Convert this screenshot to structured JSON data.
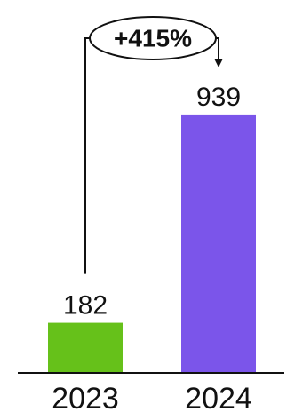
{
  "chart_data": {
    "type": "bar",
    "categories": [
      "2023",
      "2024"
    ],
    "values": [
      182,
      939
    ],
    "data_labels": [
      "182",
      "939"
    ],
    "colors": [
      "#66c11a",
      "#7b55ea"
    ],
    "annotation": {
      "label": "+415%",
      "from": "2023",
      "to": "2024"
    },
    "title": "",
    "xlabel": "",
    "ylabel": "",
    "grid": false,
    "legend": "none"
  }
}
